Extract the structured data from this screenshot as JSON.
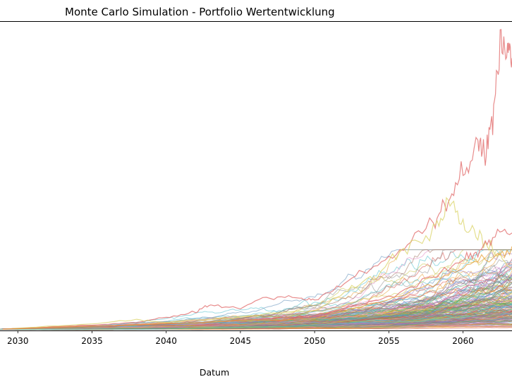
{
  "chart_data": {
    "type": "line",
    "title": "Monte Carlo Simulation - Portfolio Wertentwicklung",
    "xlabel": "Datum",
    "ylabel": "",
    "x_ticks": [
      2030,
      2035,
      2040,
      2045,
      2050,
      2055,
      2060
    ],
    "xlim": [
      2028.8,
      2063.3
    ],
    "ylim": [
      0,
      4.6
    ],
    "grid": false,
    "legend": "none",
    "series_count_approx": 200,
    "highlighted_paths": [
      {
        "color": "#e06666",
        "x": [
          2029,
          2032,
          2035,
          2038,
          2040,
          2042,
          2043,
          2045,
          2047,
          2049,
          2050,
          2052,
          2054,
          2056,
          2058,
          2059,
          2060,
          2061,
          2061.5,
          2062,
          2062.5,
          2063,
          2063.3
        ],
        "y": [
          0.02,
          0.05,
          0.08,
          0.12,
          0.2,
          0.28,
          0.38,
          0.33,
          0.5,
          0.48,
          0.45,
          0.7,
          0.95,
          1.2,
          1.6,
          1.9,
          2.3,
          2.8,
          2.6,
          3.3,
          4.1,
          4.3,
          4.05
        ]
      },
      {
        "color": "#dbd46a",
        "x": [
          2029,
          2035,
          2038,
          2040,
          2045,
          2050,
          2052,
          2054,
          2056,
          2058,
          2059,
          2060,
          2061,
          2062,
          2063.3
        ],
        "y": [
          0.02,
          0.1,
          0.16,
          0.12,
          0.2,
          0.3,
          0.55,
          0.8,
          1.2,
          1.5,
          1.9,
          1.6,
          1.4,
          1.2,
          0.9
        ]
      },
      {
        "color": "#e06666",
        "x": [
          2029,
          2040,
          2050,
          2055,
          2058,
          2060,
          2061,
          2062,
          2063.3
        ],
        "y": [
          0.02,
          0.1,
          0.2,
          0.5,
          0.8,
          1.05,
          1.2,
          1.4,
          1.45
        ]
      },
      {
        "color": "#e8a33c",
        "x": [
          2029,
          2040,
          2050,
          2055,
          2058,
          2060,
          2062,
          2063.3
        ],
        "y": [
          0.02,
          0.1,
          0.18,
          0.45,
          0.7,
          0.95,
          1.1,
          1.25
        ]
      }
    ],
    "bundle_palette": [
      "#5b8db8",
      "#e8a33c",
      "#5fae5f",
      "#d9534f",
      "#9b7cc8",
      "#a0715f",
      "#e48ac6",
      "#8f8f8f",
      "#c9c44a",
      "#4fbfcc"
    ]
  }
}
